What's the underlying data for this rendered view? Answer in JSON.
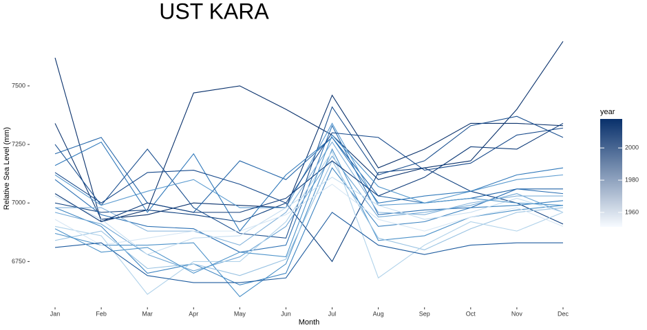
{
  "chart_data": {
    "type": "line",
    "title": "UST KARA",
    "x_label": "Month",
    "y_label": "Relative Sea Level (mm)",
    "categories": [
      "Jan",
      "Feb",
      "Mar",
      "Apr",
      "May",
      "Jun",
      "Jul",
      "Aug",
      "Sep",
      "Oct",
      "Nov",
      "Dec"
    ],
    "ylim": [
      6575,
      7720
    ],
    "yticks": [
      6750,
      7000,
      7250,
      7500
    ],
    "grid": false,
    "colorbar": {
      "title": "year",
      "lim": [
        1951,
        2018
      ],
      "ticks": [
        1960,
        1980,
        2000
      ],
      "colors": [
        "#f7fbff",
        "#08306b"
      ]
    },
    "series": [
      {
        "color": "#08306b",
        "values": [
          7620,
          6920,
          6970,
          7470,
          7500,
          7400,
          7290,
          7100,
          7150,
          7180,
          7400,
          7690
        ]
      },
      {
        "color": "#0b3d7d",
        "values": [
          7000,
          6960,
          6970,
          6950,
          6920,
          7000,
          6750,
          7130,
          7150,
          7050,
          7000,
          6910
        ]
      },
      {
        "color": "#08306b",
        "values": [
          7340,
          6930,
          6950,
          7000,
          6990,
          6980,
          7460,
          7150,
          7230,
          7340,
          7340,
          7330
        ]
      },
      {
        "color": "#1a4f8f",
        "values": [
          7250,
          6990,
          7230,
          6980,
          6870,
          6850,
          7410,
          7120,
          7180,
          7330,
          7370,
          7280
        ]
      },
      {
        "color": "#2164a8",
        "values": [
          7210,
          7280,
          7000,
          6960,
          7180,
          7100,
          7280,
          7030,
          7000,
          7020,
          7060,
          7060
        ]
      },
      {
        "color": "#2a6fb3",
        "values": [
          7100,
          6950,
          6900,
          6890,
          6790,
          6820,
          7330,
          6950,
          6970,
          6980,
          7060,
          7040
        ]
      },
      {
        "color": "#3a82c0",
        "values": [
          6980,
          6900,
          6700,
          6740,
          6650,
          6700,
          7150,
          6900,
          6920,
          6980,
          6990,
          7010
        ]
      },
      {
        "color": "#4a90c8",
        "values": [
          6870,
          6820,
          6820,
          6830,
          6600,
          6740,
          7230,
          6840,
          6860,
          6940,
          6970,
          6990
        ]
      },
      {
        "color": "#5b9bd0",
        "values": [
          7120,
          6990,
          7050,
          7100,
          6980,
          6980,
          7340,
          6990,
          7000,
          7050,
          7100,
          7120
        ]
      },
      {
        "color": "#6ea6d5",
        "values": [
          6960,
          6910,
          6780,
          6710,
          6770,
          6900,
          7200,
          6940,
          6960,
          6990,
          7040,
          6960
        ]
      },
      {
        "color": "#82b2db",
        "values": [
          6980,
          6980,
          6880,
          6880,
          6820,
          6960,
          7260,
          6960,
          6950,
          7000,
          7030,
          7030
        ]
      },
      {
        "color": "#98c2e2",
        "values": [
          6840,
          6880,
          6720,
          6740,
          6690,
          6760,
          7180,
          6850,
          6800,
          6890,
          6960,
          6980
        ]
      },
      {
        "color": "#b0d2ea",
        "values": [
          6900,
          6860,
          6610,
          6750,
          6750,
          6920,
          7220,
          6680,
          6820,
          6920,
          6880,
          6960
        ]
      },
      {
        "color": "#c5ddf0",
        "values": [
          7030,
          6930,
          6780,
          6850,
          6860,
          6980,
          7110,
          6990,
          6930,
          6960,
          7020,
          6960
        ]
      },
      {
        "color": "#d6e6f4",
        "values": [
          6930,
          6820,
          6850,
          6880,
          6880,
          6950,
          7080,
          6930,
          6880,
          6940,
          6980,
          6900
        ]
      },
      {
        "color": "#1c5a9e",
        "values": [
          6810,
          6830,
          6690,
          6660,
          6660,
          6680,
          6960,
          6820,
          6780,
          6820,
          6830,
          6830
        ]
      },
      {
        "color": "#2f78ba",
        "values": [
          7160,
          7260,
          6960,
          7210,
          6880,
          7120,
          7280,
          7000,
          7030,
          7050,
          7120,
          7150
        ]
      },
      {
        "color": "#0d3a78",
        "values": [
          7040,
          6920,
          7000,
          6960,
          6960,
          7020,
          7180,
          7030,
          7110,
          7240,
          7230,
          7340
        ]
      },
      {
        "color": "#4d93ca",
        "values": [
          6890,
          6790,
          6810,
          6700,
          6790,
          6770,
          7290,
          7070,
          7000,
          7020,
          7000,
          6990
        ]
      },
      {
        "color": "#15488a",
        "values": [
          7130,
          7000,
          7130,
          7140,
          7080,
          7000,
          7300,
          7280,
          7140,
          7170,
          7290,
          7320
        ]
      }
    ]
  }
}
